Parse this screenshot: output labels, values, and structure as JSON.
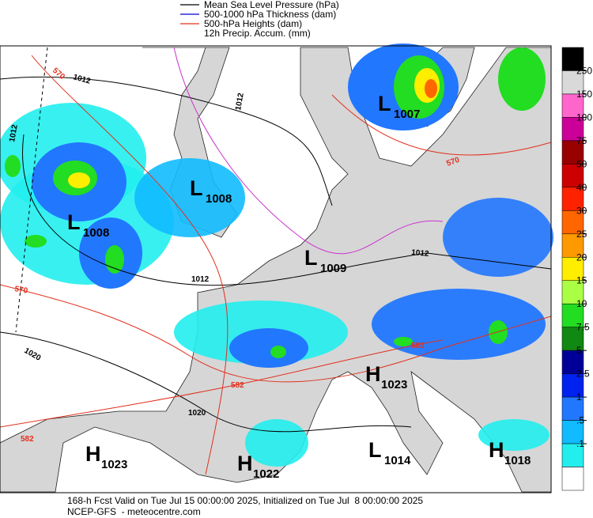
{
  "legend": [
    {
      "label": "Mean Sea Level Pressure (hPa)",
      "color": "#000000"
    },
    {
      "label": "500-1000 hPa Thickness (dam)",
      "color": "#0000cc"
    },
    {
      "label": "500-hPa Heights (dam)",
      "color": "#e0301e"
    },
    {
      "label": "12h Precip. Accum. (mm)"
    }
  ],
  "colorbar": {
    "ticks": [
      250,
      150,
      100,
      75,
      50,
      40,
      30,
      25,
      20,
      15,
      10,
      7.5,
      5,
      2.5,
      1,
      {
        "value": 0.5,
        "label": ".5"
      },
      {
        "value": 0.1,
        "label": ".1"
      }
    ],
    "colors": [
      "#000000",
      "#d9d9d9",
      "#ff66cc",
      "#cc0099",
      "#990000",
      "#cc0000",
      "#ff2200",
      "#ff6600",
      "#ff9900",
      "#ffee00",
      "#aaff44",
      "#22dd22",
      "#118811",
      "#000099",
      "#0022ee",
      "#2277ff",
      "#11bbff",
      "#22eeee",
      "#ffffff"
    ]
  },
  "centers": [
    {
      "letter": "L",
      "value": 1008
    },
    {
      "letter": "L",
      "value": 1008
    },
    {
      "letter": "L",
      "value": 1007
    },
    {
      "letter": "L",
      "value": 1009
    },
    {
      "letter": "H",
      "value": 1023
    },
    {
      "letter": "L",
      "value": 1014
    },
    {
      "letter": "H",
      "value": 1018
    },
    {
      "letter": "H",
      "value": 1023
    },
    {
      "letter": "H",
      "value": 1022
    }
  ],
  "contour_labels": [
    1012,
    1012,
    1012,
    1012,
    1012,
    1020,
    1020,
    570,
    570,
    570,
    582,
    582,
    582
  ],
  "footer": [
    "168-h Fcst Valid on Tue Jul 15 00:00:00 2025, Initialized on Tue Jul  8 00:00:00 2025",
    "NCEP-GFS  - meteocentre.com"
  ]
}
